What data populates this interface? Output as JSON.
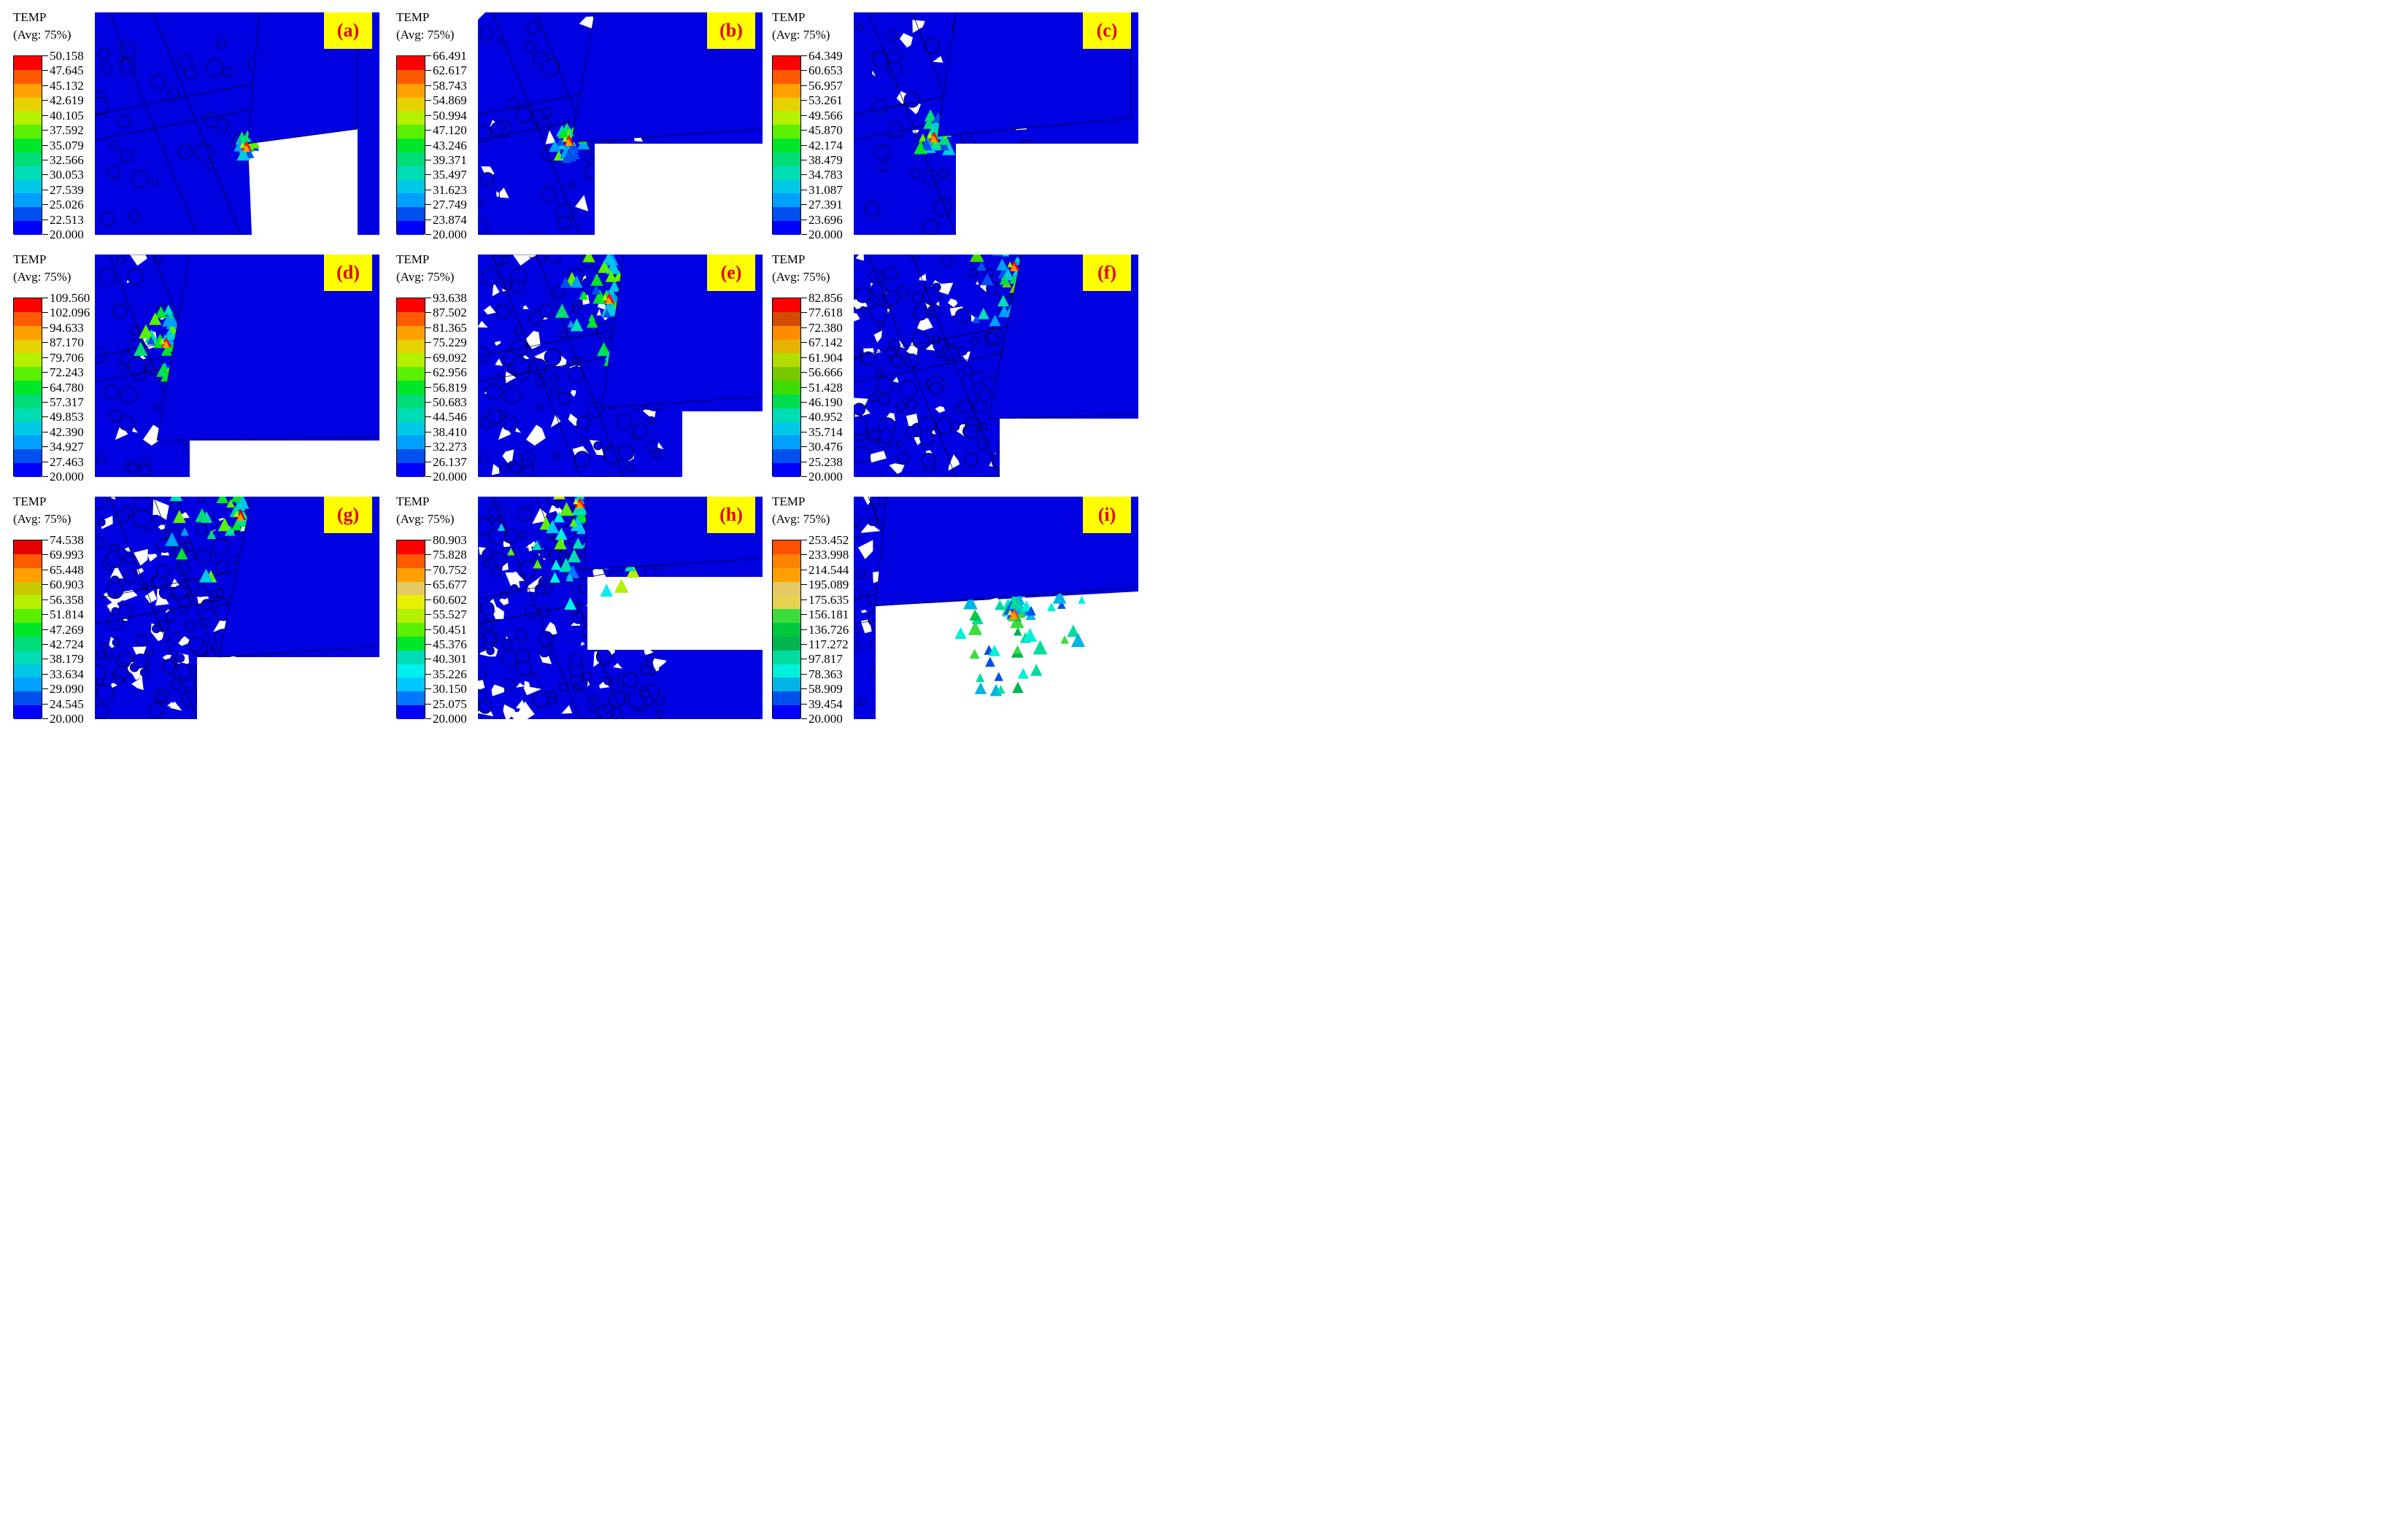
{
  "legend_title": "TEMP",
  "legend_subtitle": "(Avg: 75%)",
  "colors": {
    "domain": "#0000e0",
    "mesh_line": "#000020",
    "background": "#ffffff",
    "badge_bg": "#ffff00",
    "badge_text": "#e00000"
  },
  "panels": [
    {
      "label": "(a)",
      "values": [
        "50.158",
        "47.645",
        "45.132",
        "42.619",
        "40.105",
        "37.592",
        "35.079",
        "32.566",
        "30.053",
        "27.539",
        "25.026",
        "22.513",
        "20.000"
      ],
      "colors": [
        "#ff0000",
        "#ff5a00",
        "#ffa000",
        "#e6d200",
        "#b4f000",
        "#5af000",
        "#00e628",
        "#00dc78",
        "#00dcb4",
        "#00c8e6",
        "#00a0ff",
        "#0050f0",
        "#0000ff"
      ]
    },
    {
      "label": "(b)",
      "values": [
        "66.491",
        "62.617",
        "58.743",
        "54.869",
        "50.994",
        "47.120",
        "43.246",
        "39.371",
        "35.497",
        "31.623",
        "27.749",
        "23.874",
        "20.000"
      ],
      "colors": [
        "#ff0000",
        "#ff5a00",
        "#ffa000",
        "#e6d200",
        "#b4f000",
        "#5af000",
        "#00e628",
        "#00dc78",
        "#00dcb4",
        "#00c8e6",
        "#00a0ff",
        "#0050f0",
        "#0000ff"
      ]
    },
    {
      "label": "(c)",
      "values": [
        "64.349",
        "60.653",
        "56.957",
        "53.261",
        "49.566",
        "45.870",
        "42.174",
        "38.479",
        "34.783",
        "31.087",
        "27.391",
        "23.696",
        "20.000"
      ],
      "colors": [
        "#ff0000",
        "#ff5a00",
        "#ffa000",
        "#e6d200",
        "#b4f000",
        "#5af000",
        "#00e628",
        "#00dc78",
        "#00dcb4",
        "#00c8e6",
        "#00a0ff",
        "#0050f0",
        "#0000ff"
      ]
    },
    {
      "label": "(d)",
      "values": [
        "109.560",
        "102.096",
        "94.633",
        "87.170",
        "79.706",
        "72.243",
        "64.780",
        "57.317",
        "49.853",
        "42.390",
        "34.927",
        "27.463",
        "20.000"
      ],
      "colors": [
        "#ff0000",
        "#ff5a00",
        "#ffa000",
        "#e6d200",
        "#b4f000",
        "#5af000",
        "#00e628",
        "#00dc78",
        "#00dcb4",
        "#00c8e6",
        "#00a0ff",
        "#0050f0",
        "#0000ff"
      ]
    },
    {
      "label": "(e)",
      "values": [
        "93.638",
        "87.502",
        "81.365",
        "75.229",
        "69.092",
        "62.956",
        "56.819",
        "50.683",
        "44.546",
        "38.410",
        "32.273",
        "26.137",
        "20.000"
      ],
      "colors": [
        "#ff0000",
        "#ff5a00",
        "#ffa000",
        "#e6d200",
        "#b4f000",
        "#5af000",
        "#00e628",
        "#00dc78",
        "#00dcb4",
        "#00c8e6",
        "#00a0ff",
        "#0050f0",
        "#0000ff"
      ]
    },
    {
      "label": "(f)",
      "values": [
        "82.856",
        "77.618",
        "72.380",
        "67.142",
        "61.904",
        "56.666",
        "51.428",
        "46.190",
        "40.952",
        "35.714",
        "30.476",
        "25.238",
        "20.000"
      ],
      "colors": [
        "#ff0000",
        "#d24b00",
        "#ff8c00",
        "#e6b400",
        "#b4dc00",
        "#78c800",
        "#3cdc00",
        "#00dc50",
        "#00dcb4",
        "#00c8e6",
        "#00a0ff",
        "#0050f0",
        "#0000ff"
      ]
    },
    {
      "label": "(g)",
      "values": [
        "74.538",
        "69.993",
        "65.448",
        "60.903",
        "56.358",
        "51.814",
        "47.269",
        "42.724",
        "38.179",
        "33.634",
        "29.090",
        "24.545",
        "20.000"
      ],
      "colors": [
        "#e60000",
        "#ff5a00",
        "#ffa000",
        "#c8c800",
        "#b4f000",
        "#5af000",
        "#00e628",
        "#00dc78",
        "#00dcb4",
        "#00c8e6",
        "#00a0ff",
        "#0050f0",
        "#0000ff"
      ]
    },
    {
      "label": "(h)",
      "values": [
        "80.903",
        "75.828",
        "70.752",
        "65.677",
        "60.602",
        "55.527",
        "50.451",
        "45.376",
        "40.301",
        "35.226",
        "30.150",
        "25.075",
        "20.000"
      ],
      "colors": [
        "#ff0000",
        "#ff5a00",
        "#ffa000",
        "#e6c864",
        "#e6f000",
        "#b4f000",
        "#5af000",
        "#00e628",
        "#00dcb4",
        "#00f0f0",
        "#00c8ff",
        "#0078ff",
        "#0000ff"
      ]
    },
    {
      "label": "(i)",
      "values": [
        "253.452",
        "233.998",
        "214.544",
        "195.089",
        "175.635",
        "156.181",
        "136.726",
        "117.272",
        "97.817",
        "78.363",
        "58.909",
        "39.454",
        "20.000"
      ],
      "colors": [
        "#ff5000",
        "#ff8200",
        "#ffa000",
        "#e6c864",
        "#e6d250",
        "#3cdc3c",
        "#00c83c",
        "#00b450",
        "#00dca0",
        "#00f0dc",
        "#00b4e6",
        "#0050f0",
        "#0000ff"
      ]
    }
  ]
}
